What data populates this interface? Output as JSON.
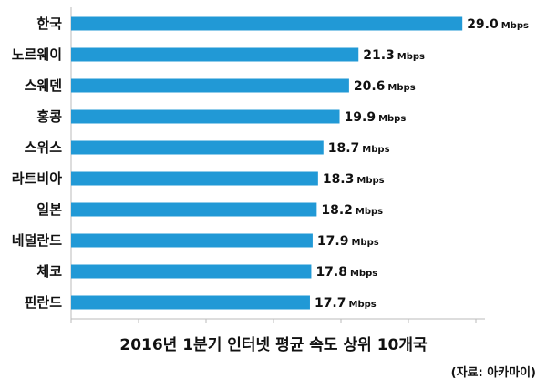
{
  "chart_data": {
    "type": "bar",
    "orientation": "horizontal",
    "title": "2016년 1분기 인터넷 평균 속도 상위 10개국",
    "source": "(자료: 아카마이)",
    "unit": "Mbps",
    "categories": [
      "한국",
      "노르웨이",
      "스웨덴",
      "홍콩",
      "스위스",
      "라트비아",
      "일본",
      "네덜란드",
      "체코",
      "핀란드"
    ],
    "values": [
      29.0,
      21.3,
      20.6,
      19.9,
      18.7,
      18.3,
      18.2,
      17.9,
      17.8,
      17.7
    ],
    "value_labels": [
      "29.0",
      "21.3",
      "20.6",
      "19.9",
      "18.7",
      "18.3",
      "18.2",
      "17.9",
      "17.8",
      "17.7"
    ],
    "xlim": [
      0,
      30
    ],
    "grid": false,
    "legend": "none",
    "bar_color": "#2199d6",
    "axis_color": "#bbbbbb"
  }
}
